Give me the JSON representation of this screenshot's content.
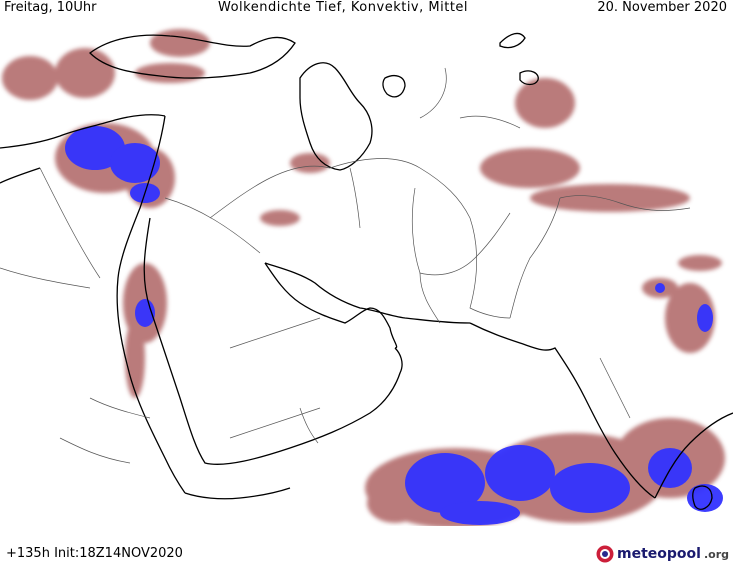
{
  "header": {
    "left": "Freitag, 10Uhr",
    "center": "Wolkendichte  Tief, Konvektiv, Mittel",
    "right": "20. November 2020"
  },
  "footer": {
    "left": "+135h Init:18Z14NOV2020"
  },
  "logo": {
    "name": "meteopool",
    "suffix": ".org"
  },
  "colors": {
    "cloud_low": "#a4504f",
    "cloud_light": "#c99a94",
    "convective": "#3333ff",
    "coast": "#000000",
    "border": "#555555"
  }
}
